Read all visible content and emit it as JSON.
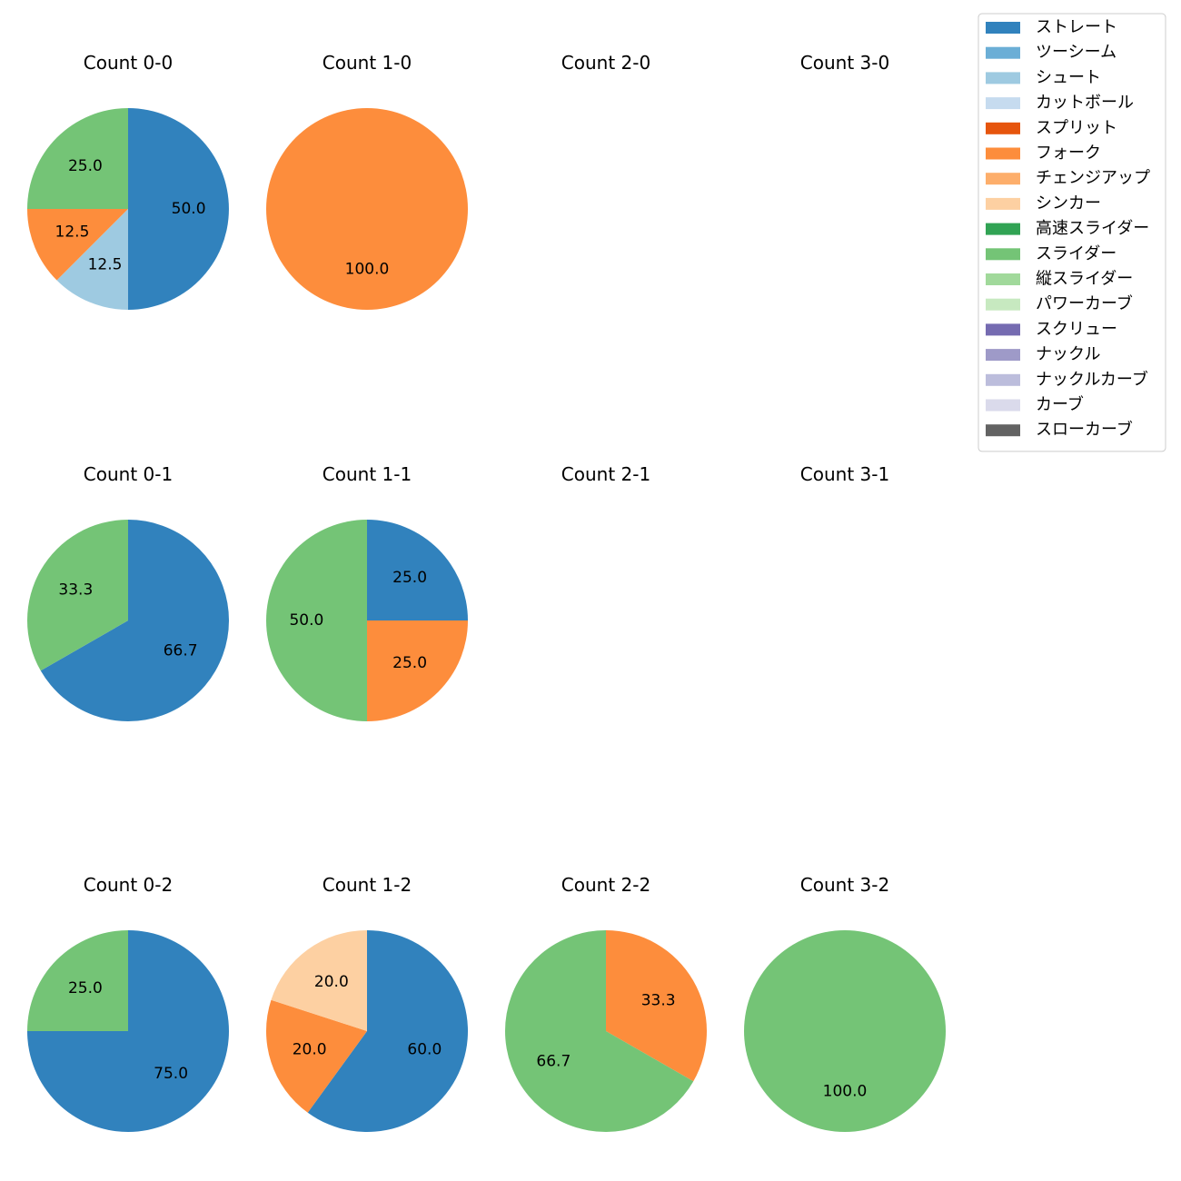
{
  "chart_data": {
    "type": "pie",
    "legend": {
      "placement": "top-right",
      "entries": [
        {
          "name": "ストレート",
          "color": "#3182bd"
        },
        {
          "name": "ツーシーム",
          "color": "#6baed6"
        },
        {
          "name": "シュート",
          "color": "#9ecae1"
        },
        {
          "name": "カットボール",
          "color": "#c6dbef"
        },
        {
          "name": "スプリット",
          "color": "#e6550d"
        },
        {
          "name": "フォーク",
          "color": "#fd8d3c"
        },
        {
          "name": "チェンジアップ",
          "color": "#fdae6b"
        },
        {
          "name": "シンカー",
          "color": "#fdd0a2"
        },
        {
          "name": "高速スライダー",
          "color": "#31a354"
        },
        {
          "name": "スライダー",
          "color": "#74c476"
        },
        {
          "name": "縦スライダー",
          "color": "#a1d99b"
        },
        {
          "name": "パワーカーブ",
          "color": "#c7e9c0"
        },
        {
          "name": "スクリュー",
          "color": "#756bb1"
        },
        {
          "name": "ナックル",
          "color": "#9e9ac8"
        },
        {
          "name": "ナックルカーブ",
          "color": "#bcbddc"
        },
        {
          "name": "カーブ",
          "color": "#dadaeb"
        },
        {
          "name": "スローカーブ",
          "color": "#636363"
        }
      ]
    },
    "pies": [
      {
        "title": "Count 0-0",
        "row": 0,
        "col": 0,
        "slices": [
          {
            "pitch": "ストレート",
            "value": 50.0,
            "label": "50.0"
          },
          {
            "pitch": "シュート",
            "value": 12.5,
            "label": "12.5"
          },
          {
            "pitch": "フォーク",
            "value": 12.5,
            "label": "12.5"
          },
          {
            "pitch": "スライダー",
            "value": 25.0,
            "label": "25.0"
          }
        ]
      },
      {
        "title": "Count 1-0",
        "row": 0,
        "col": 1,
        "slices": [
          {
            "pitch": "フォーク",
            "value": 100.0,
            "label": "100.0"
          }
        ]
      },
      {
        "title": "Count 2-0",
        "row": 0,
        "col": 2,
        "slices": []
      },
      {
        "title": "Count 3-0",
        "row": 0,
        "col": 3,
        "slices": []
      },
      {
        "title": "Count 0-1",
        "row": 1,
        "col": 0,
        "slices": [
          {
            "pitch": "ストレート",
            "value": 66.7,
            "label": "66.7"
          },
          {
            "pitch": "スライダー",
            "value": 33.3,
            "label": "33.3"
          }
        ]
      },
      {
        "title": "Count 1-1",
        "row": 1,
        "col": 1,
        "slices": [
          {
            "pitch": "ストレート",
            "value": 25.0,
            "label": "25.0"
          },
          {
            "pitch": "フォーク",
            "value": 25.0,
            "label": "25.0"
          },
          {
            "pitch": "スライダー",
            "value": 50.0,
            "label": "50.0"
          }
        ]
      },
      {
        "title": "Count 2-1",
        "row": 1,
        "col": 2,
        "slices": []
      },
      {
        "title": "Count 3-1",
        "row": 1,
        "col": 3,
        "slices": []
      },
      {
        "title": "Count 0-2",
        "row": 2,
        "col": 0,
        "slices": [
          {
            "pitch": "ストレート",
            "value": 75.0,
            "label": "75.0"
          },
          {
            "pitch": "スライダー",
            "value": 25.0,
            "label": "25.0"
          }
        ]
      },
      {
        "title": "Count 1-2",
        "row": 2,
        "col": 1,
        "slices": [
          {
            "pitch": "ストレート",
            "value": 60.0,
            "label": "60.0"
          },
          {
            "pitch": "フォーク",
            "value": 20.0,
            "label": "20.0"
          },
          {
            "pitch": "シンカー",
            "value": 20.0,
            "label": "20.0"
          }
        ]
      },
      {
        "title": "Count 2-2",
        "row": 2,
        "col": 2,
        "slices": [
          {
            "pitch": "フォーク",
            "value": 33.3,
            "label": "33.3"
          },
          {
            "pitch": "スライダー",
            "value": 66.7,
            "label": "66.7"
          }
        ]
      },
      {
        "title": "Count 3-2",
        "row": 2,
        "col": 3,
        "slices": [
          {
            "pitch": "スライダー",
            "value": 100.0,
            "label": "100.0"
          }
        ]
      }
    ]
  }
}
